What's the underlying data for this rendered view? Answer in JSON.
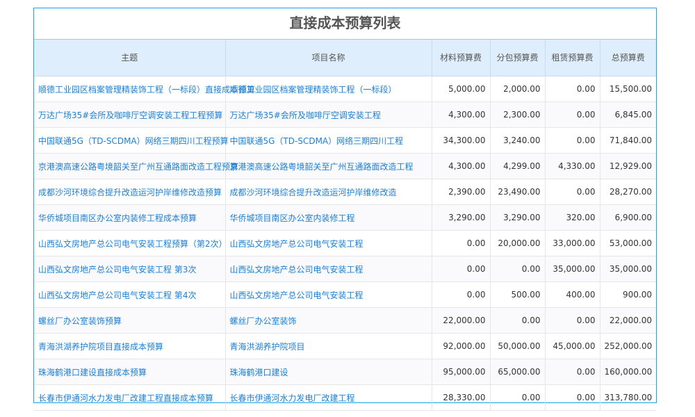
{
  "title": "直接成本预算列表",
  "columns": [
    "主题",
    "项目名称",
    "材料预算费",
    "分包预算费",
    "租赁预算费",
    "总预算费"
  ],
  "rows": [
    [
      "顺德工业园区档案管理精装饰工程（一标段）直接成本预算",
      "顺德工业园区档案管理精装饰工程（一标段）",
      "5,000.00",
      "2,000.00",
      "0.00",
      "15,500.00"
    ],
    [
      "万达广场35#会所及咖啡厅空调安装工程工程预算",
      "万达广场35#会所及咖啡厅空调安装工程",
      "4,300.00",
      "2,300.00",
      "0.00",
      "6,845.00"
    ],
    [
      "中国联通5G（TD-SCDMA）网络三期四川工程预算",
      "中国联通5G（TD-SCDMA）网络三期四川工程",
      "34,300.00",
      "3,240.00",
      "0.00",
      "71,840.00"
    ],
    [
      "京港澳高速公路粤境韶关至广州互通路面改造工程预算",
      "京港澳高速公路粤境韶关至广州互通路面改造工程",
      "4,300.00",
      "4,299.00",
      "4,330.00",
      "12,929.00"
    ],
    [
      "成都沙河环境综合提升改造运河护岸维修改造预算",
      "成都沙河环境综合提升改造运河护岸维修改造",
      "2,390.00",
      "23,490.00",
      "0.00",
      "28,270.00"
    ],
    [
      "华侨城项目南区办公室内装修工程成本预算",
      "华侨城项目南区办公室内装修工程",
      "3,290.00",
      "3,290.00",
      "320.00",
      "6,900.00"
    ],
    [
      "山西弘文房地产总公司电气安装工程预算（第2次）",
      "山西弘文房地产总公司电气安装工程",
      "0.00",
      "20,000.00",
      "33,000.00",
      "53,000.00"
    ],
    [
      "山西弘文房地产总公司电气安装工程 第3次",
      "山西弘文房地产总公司电气安装工程",
      "0.00",
      "0.00",
      "35,000.00",
      "35,000.00"
    ],
    [
      "山西弘文房地产总公司电气安装工程 第4次",
      "山西弘文房地产总公司电气安装工程",
      "0.00",
      "500.00",
      "400.00",
      "900.00"
    ],
    [
      "螺丝厂办公室装饰预算",
      "螺丝厂办公室装饰",
      "22,000.00",
      "0.00",
      "0.00",
      "22,000.00"
    ],
    [
      "青海洪湖养护院项目直接成本预算",
      "青海洪湖养护院项目",
      "92,000.00",
      "50,000.00",
      "45,000.00",
      "252,000.00"
    ],
    [
      "珠海鹤港口建设直接成本预算",
      "珠海鹤港口建设",
      "95,000.00",
      "65,000.00",
      "0.00",
      "160,000.00"
    ],
    [
      "长春市伊通河水力发电厂改建工程直接成本预算",
      "长春市伊通河水力发电厂改建工程",
      "28,330.00",
      "0.00",
      "0.00",
      "313,780.00"
    ]
  ],
  "colors": {
    "accent": "#1aa3e8",
    "link": "#1a7fd4",
    "header_bg": "#dfeefc"
  }
}
